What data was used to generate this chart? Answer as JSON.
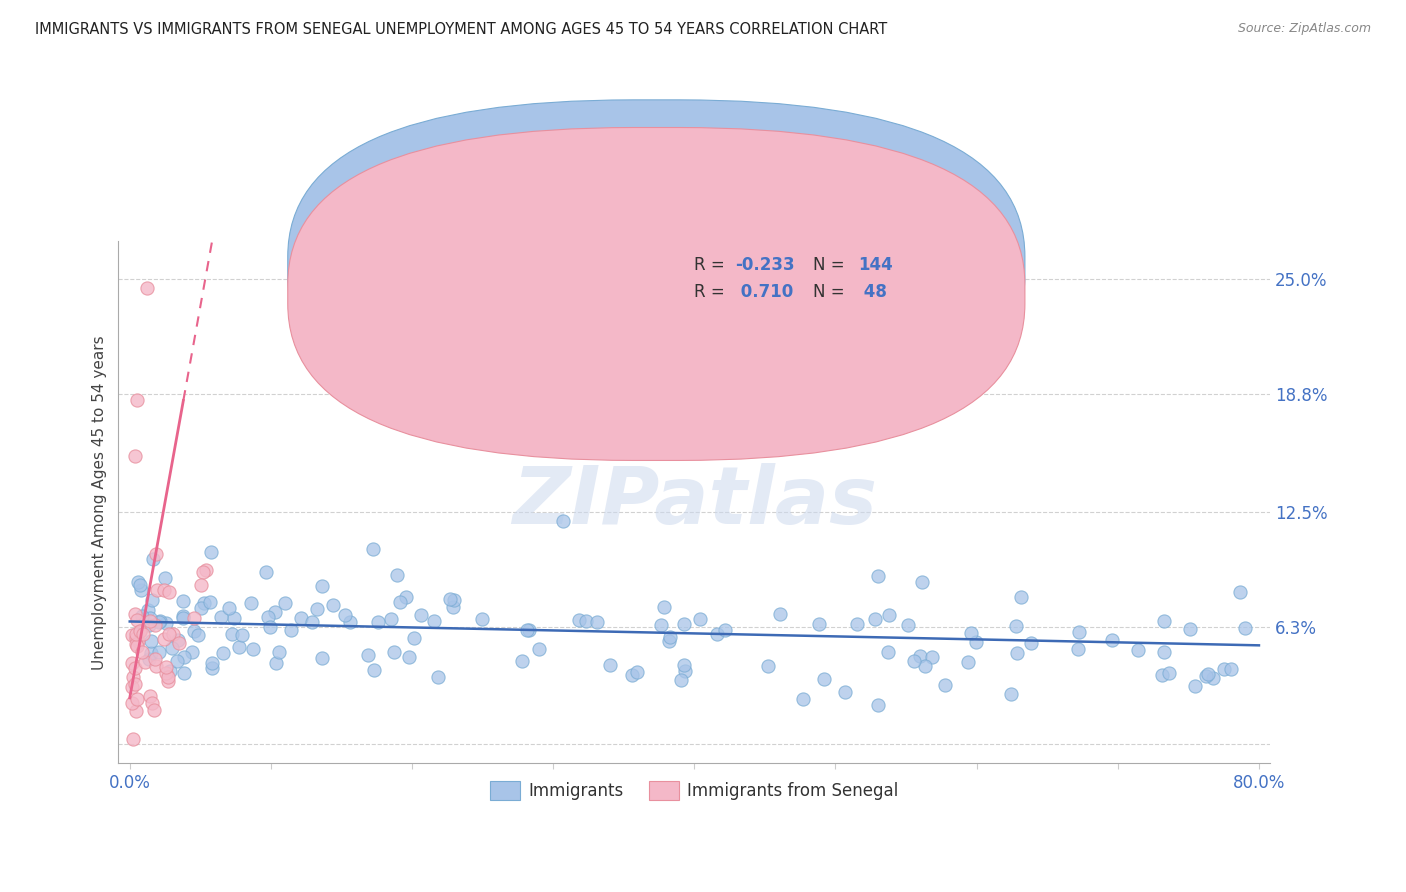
{
  "title": "IMMIGRANTS VS IMMIGRANTS FROM SENEGAL UNEMPLOYMENT AMONG AGES 45 TO 54 YEARS CORRELATION CHART",
  "source": "Source: ZipAtlas.com",
  "ylabel": "Unemployment Among Ages 45 to 54 years",
  "xlim": [
    -0.008,
    0.808
  ],
  "ylim": [
    -0.01,
    0.27
  ],
  "watermark": "ZIPatlas",
  "blue_fill": "#a8c4e8",
  "blue_edge": "#7aacd4",
  "pink_fill": "#f4b8c8",
  "pink_edge": "#e8909e",
  "blue_line_color": "#3d6ab5",
  "pink_line_color": "#e8648c",
  "tick_label_color": "#4472c4",
  "grid_color": "#cccccc",
  "background_color": "#ffffff",
  "title_color": "#222222",
  "axis_label_color": "#444444",
  "legend_r1": "R = -0.233",
  "legend_n1": "N = 144",
  "legend_r2": "R =  0.710",
  "legend_n2": "N =  48"
}
